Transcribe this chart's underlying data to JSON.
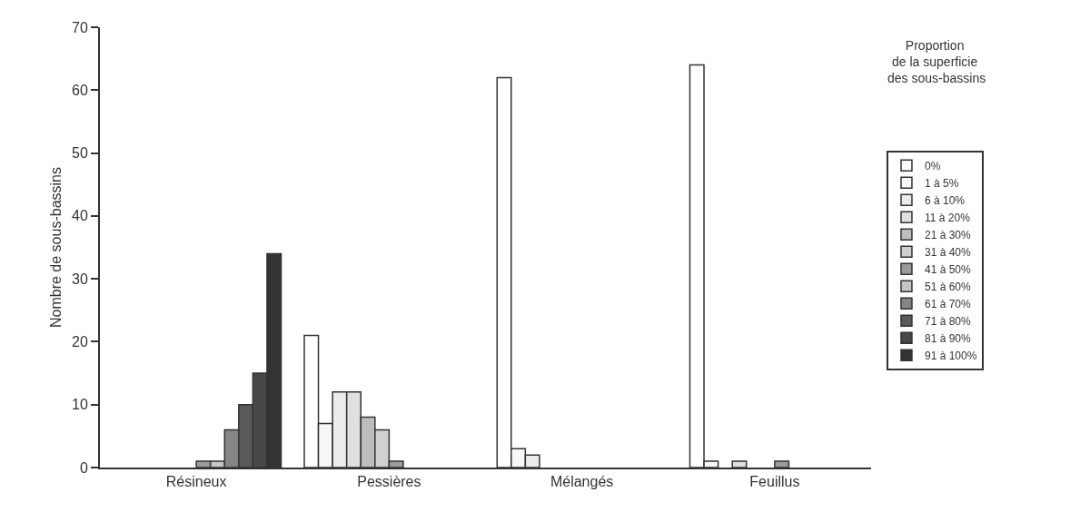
{
  "chart_data": {
    "type": "bar",
    "ylabel": "Nombre de sous-bassins",
    "legend_title": "Proportion de la superficie des sous-bassins",
    "categories": [
      "Résineux",
      "Pessières",
      "Mélangés",
      "Feuillus"
    ],
    "series": [
      {
        "name": "0%",
        "color": "#ffffff",
        "values": [
          null,
          21,
          62,
          64
        ]
      },
      {
        "name": "1 à 5%",
        "color": "#f7f7f7",
        "values": [
          null,
          7,
          3,
          1
        ]
      },
      {
        "name": "6 à 10%",
        "color": "#ececec",
        "values": [
          null,
          12,
          2,
          null
        ]
      },
      {
        "name": "11 à 20%",
        "color": "#e0e0e0",
        "values": [
          null,
          12,
          null,
          1
        ]
      },
      {
        "name": "21 à 30%",
        "color": "#bdbdbd",
        "values": [
          null,
          8,
          null,
          null
        ]
      },
      {
        "name": "31 à 40%",
        "color": "#d0d0d0",
        "values": [
          null,
          6,
          null,
          null
        ]
      },
      {
        "name": "41 à 50%",
        "color": "#9c9c9c",
        "values": [
          1,
          1,
          null,
          1
        ]
      },
      {
        "name": "51 à 60%",
        "color": "#c6c6c6",
        "values": [
          1,
          null,
          null,
          null
        ]
      },
      {
        "name": "61 à 70%",
        "color": "#858585",
        "values": [
          6,
          null,
          null,
          null
        ]
      },
      {
        "name": "71 à 80%",
        "color": "#5a5a5a",
        "values": [
          10,
          null,
          null,
          null
        ]
      },
      {
        "name": "81 à 90%",
        "color": "#474747",
        "values": [
          15,
          null,
          null,
          null
        ]
      },
      {
        "name": "91 à 100%",
        "color": "#333333",
        "values": [
          34,
          null,
          null,
          null
        ]
      }
    ],
    "ylim": [
      0,
      70
    ],
    "yticks": [
      0,
      10,
      20,
      30,
      40,
      50,
      60,
      70
    ],
    "grid": false,
    "legend": "right"
  }
}
